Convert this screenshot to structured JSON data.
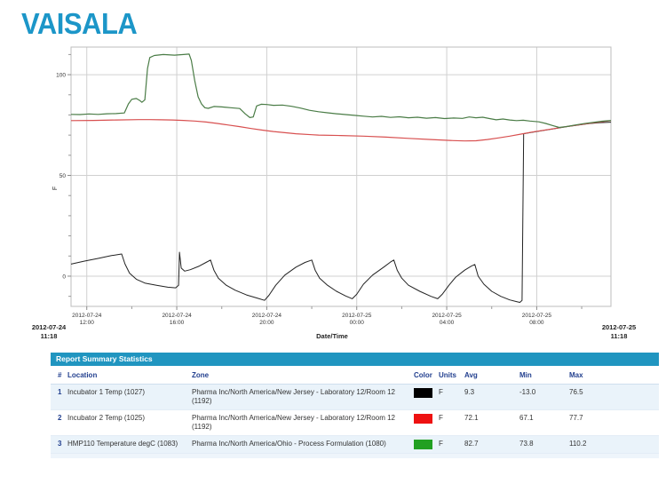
{
  "logo": {
    "text": "VAISALA",
    "color": "#1c96c8"
  },
  "chart_data": {
    "type": "line",
    "xlabel": "Date/Time",
    "ylabel": "F",
    "grid": true,
    "legend_position": "none",
    "x_range_hours": [
      0,
      24
    ],
    "y_range": [
      -15,
      113.7
    ],
    "x_start_label": {
      "date": "2012-07-24",
      "time": "11:18"
    },
    "x_end_label": {
      "date": "2012-07-25",
      "time": "11:18"
    },
    "x_ticks": [
      {
        "h": 0.7,
        "date": "2012-07-24",
        "time": "12:00"
      },
      {
        "h": 4.7,
        "date": "2012-07-24",
        "time": "16:00"
      },
      {
        "h": 8.7,
        "date": "2012-07-24",
        "time": "20:00"
      },
      {
        "h": 12.7,
        "date": "2012-07-25",
        "time": "00:00"
      },
      {
        "h": 16.7,
        "date": "2012-07-25",
        "time": "04:00"
      },
      {
        "h": 20.7,
        "date": "2012-07-25",
        "time": "08:00"
      }
    ],
    "x_minor_ticks_h": [
      2.7,
      6.7,
      10.7,
      14.7,
      18.7,
      22.7
    ],
    "y_ticks": [
      {
        "v": 0,
        "label": "0"
      },
      {
        "v": 50,
        "label": "50"
      },
      {
        "v": 100,
        "label": "100"
      }
    ],
    "y_minor_ticks": [
      -10,
      10,
      20,
      30,
      40,
      60,
      70,
      80,
      90,
      110
    ],
    "series": [
      {
        "name": "Incubator 1 Temp (1027)",
        "color": "#222222",
        "points": [
          [
            0,
            6
          ],
          [
            0.6,
            7.5
          ],
          [
            1.2,
            8.8
          ],
          [
            1.8,
            10.2
          ],
          [
            2.25,
            11
          ],
          [
            2.4,
            6
          ],
          [
            2.6,
            1.5
          ],
          [
            2.9,
            -1.5
          ],
          [
            3.3,
            -3.5
          ],
          [
            3.8,
            -4.5
          ],
          [
            4.3,
            -5.5
          ],
          [
            4.65,
            -5.8
          ],
          [
            4.78,
            -4.5
          ],
          [
            4.82,
            11.9
          ],
          [
            4.9,
            4
          ],
          [
            5.05,
            2.5
          ],
          [
            5.3,
            3.2
          ],
          [
            5.7,
            5
          ],
          [
            6.0,
            6.8
          ],
          [
            6.2,
            8
          ],
          [
            6.35,
            3
          ],
          [
            6.55,
            -1
          ],
          [
            6.9,
            -4.5
          ],
          [
            7.3,
            -7
          ],
          [
            7.8,
            -9.3
          ],
          [
            8.3,
            -11
          ],
          [
            8.6,
            -12
          ],
          [
            8.8,
            -9.5
          ],
          [
            9.1,
            -4.5
          ],
          [
            9.5,
            0.5
          ],
          [
            10.0,
            4.5
          ],
          [
            10.4,
            6.8
          ],
          [
            10.7,
            8
          ],
          [
            10.85,
            3
          ],
          [
            11.05,
            -1
          ],
          [
            11.4,
            -4.5
          ],
          [
            11.8,
            -7.5
          ],
          [
            12.2,
            -9.8
          ],
          [
            12.5,
            -11.2
          ],
          [
            12.7,
            -9
          ],
          [
            13.0,
            -4
          ],
          [
            13.4,
            0.5
          ],
          [
            13.9,
            4.5
          ],
          [
            14.2,
            7
          ],
          [
            14.35,
            8
          ],
          [
            14.5,
            3
          ],
          [
            14.7,
            -1
          ],
          [
            15.0,
            -4.5
          ],
          [
            15.5,
            -7.5
          ],
          [
            16.0,
            -10
          ],
          [
            16.3,
            -11.2
          ],
          [
            16.5,
            -9
          ],
          [
            16.8,
            -4.5
          ],
          [
            17.1,
            -0.5
          ],
          [
            17.5,
            3
          ],
          [
            17.8,
            5
          ],
          [
            17.95,
            5.8
          ],
          [
            18.1,
            0
          ],
          [
            18.35,
            -4
          ],
          [
            18.7,
            -7.5
          ],
          [
            19.1,
            -10
          ],
          [
            19.5,
            -11.8
          ],
          [
            19.8,
            -12.6
          ],
          [
            19.95,
            -13
          ],
          [
            20.05,
            -12
          ],
          [
            20.12,
            70.7
          ],
          [
            20.4,
            71.2
          ],
          [
            21,
            72.3
          ],
          [
            21.5,
            73.2
          ],
          [
            22,
            74.1
          ],
          [
            22.5,
            74.9
          ],
          [
            23,
            75.7
          ],
          [
            23.5,
            76.2
          ],
          [
            24,
            76.4
          ]
        ]
      },
      {
        "name": "Incubator 2 Temp (1025)",
        "color": "#d85050",
        "points": [
          [
            0,
            77.2
          ],
          [
            1,
            77.3
          ],
          [
            2,
            77.5
          ],
          [
            3,
            77.7
          ],
          [
            3.5,
            77.7
          ],
          [
            4,
            77.6
          ],
          [
            4.5,
            77.5
          ],
          [
            5,
            77.3
          ],
          [
            5.5,
            77
          ],
          [
            6,
            76.5
          ],
          [
            6.5,
            75.8
          ],
          [
            7,
            75
          ],
          [
            7.5,
            74.2
          ],
          [
            8,
            73.3
          ],
          [
            8.5,
            72.5
          ],
          [
            9,
            71.8
          ],
          [
            9.5,
            71.2
          ],
          [
            10,
            70.7
          ],
          [
            10.7,
            70.2
          ],
          [
            11,
            70
          ],
          [
            12,
            69.8
          ],
          [
            13,
            69.5
          ],
          [
            14,
            69
          ],
          [
            15,
            68.4
          ],
          [
            16,
            67.8
          ],
          [
            17,
            67.3
          ],
          [
            17.5,
            67.1
          ],
          [
            18,
            67.2
          ],
          [
            18.5,
            67.8
          ],
          [
            19,
            68.6
          ],
          [
            19.5,
            69.5
          ],
          [
            20,
            70.5
          ],
          [
            20.5,
            71.5
          ],
          [
            21,
            72.4
          ],
          [
            21.5,
            73.3
          ],
          [
            22,
            74.2
          ],
          [
            22.5,
            75
          ],
          [
            23,
            75.8
          ],
          [
            23.5,
            76.5
          ],
          [
            24,
            77.2
          ]
        ]
      },
      {
        "name": "HMP110 Temperature degC (1083)",
        "color": "#4a7c46",
        "points": [
          [
            0,
            80.3
          ],
          [
            0.4,
            80.2
          ],
          [
            0.8,
            80.5
          ],
          [
            1.2,
            80.3
          ],
          [
            1.6,
            80.6
          ],
          [
            2.0,
            80.7
          ],
          [
            2.37,
            81
          ],
          [
            2.55,
            85.5
          ],
          [
            2.7,
            87.8
          ],
          [
            2.9,
            88.2
          ],
          [
            3.05,
            87.2
          ],
          [
            3.15,
            86.3
          ],
          [
            3.28,
            87.5
          ],
          [
            3.4,
            103
          ],
          [
            3.5,
            108.5
          ],
          [
            3.7,
            109.5
          ],
          [
            4.1,
            110
          ],
          [
            4.6,
            109.7
          ],
          [
            5.0,
            110
          ],
          [
            5.25,
            110.2
          ],
          [
            5.35,
            107
          ],
          [
            5.5,
            97
          ],
          [
            5.65,
            89
          ],
          [
            5.8,
            85.5
          ],
          [
            5.95,
            83.6
          ],
          [
            6.1,
            83.3
          ],
          [
            6.35,
            84.2
          ],
          [
            6.7,
            84
          ],
          [
            7.1,
            83.6
          ],
          [
            7.5,
            83.2
          ],
          [
            7.75,
            80.5
          ],
          [
            7.95,
            78.7
          ],
          [
            8.1,
            79
          ],
          [
            8.25,
            84.5
          ],
          [
            8.45,
            85.3
          ],
          [
            8.7,
            85.2
          ],
          [
            9.0,
            84.8
          ],
          [
            9.4,
            84.9
          ],
          [
            9.8,
            84.3
          ],
          [
            10.2,
            83.4
          ],
          [
            10.6,
            82.3
          ],
          [
            11.0,
            81.6
          ],
          [
            11.4,
            81.1
          ],
          [
            11.8,
            80.6
          ],
          [
            12.2,
            80.2
          ],
          [
            12.6,
            79.8
          ],
          [
            13.0,
            79.4
          ],
          [
            13.4,
            79.0
          ],
          [
            13.8,
            79.3
          ],
          [
            14.2,
            78.8
          ],
          [
            14.6,
            79.1
          ],
          [
            15.0,
            78.6
          ],
          [
            15.4,
            78.9
          ],
          [
            15.8,
            78.4
          ],
          [
            16.2,
            78.7
          ],
          [
            16.6,
            78.2
          ],
          [
            17.0,
            78.5
          ],
          [
            17.4,
            78.3
          ],
          [
            17.7,
            79.0
          ],
          [
            18.0,
            78.6
          ],
          [
            18.3,
            78.9
          ],
          [
            18.6,
            78.2
          ],
          [
            18.9,
            77.6
          ],
          [
            19.2,
            78.0
          ],
          [
            19.5,
            77.5
          ],
          [
            19.8,
            77.2
          ],
          [
            20.1,
            77.4
          ],
          [
            20.4,
            77.0
          ],
          [
            20.8,
            76.6
          ],
          [
            21.1,
            75.8
          ],
          [
            21.4,
            74.8
          ],
          [
            21.7,
            73.8
          ],
          [
            22.0,
            74.2
          ],
          [
            22.4,
            75.0
          ],
          [
            22.8,
            75.7
          ],
          [
            23.2,
            76.3
          ],
          [
            23.6,
            76.9
          ],
          [
            24,
            77.3
          ]
        ]
      }
    ]
  },
  "table": {
    "title": "Report Summary Statistics",
    "columns": [
      "#",
      "Location",
      "Zone",
      "Color",
      "Units",
      "Avg",
      "Min",
      "Max"
    ],
    "rows": [
      {
        "num": "1",
        "location": "Incubator 1 Temp (1027)",
        "zone": "Pharma Inc/North America/New Jersey - Laboratory 12/Room 12 (1192)",
        "color": "#000000",
        "units": "F",
        "avg": "9.3",
        "min": "-13.0",
        "max": "76.5"
      },
      {
        "num": "2",
        "location": "Incubator 2 Temp (1025)",
        "zone": "Pharma Inc/North America/New Jersey - Laboratory 12/Room 12 (1192)",
        "color": "#ee1111",
        "units": "F",
        "avg": "72.1",
        "min": "67.1",
        "max": "77.7"
      },
      {
        "num": "3",
        "location": "HMP110 Temperature degC (1083)",
        "zone": "Pharma Inc/North America/Ohio - Process Formulation (1080)",
        "color": "#22a022",
        "units": "F",
        "avg": "82.7",
        "min": "73.8",
        "max": "110.2"
      }
    ]
  },
  "colors": {
    "logo_blue": "#1c96c8",
    "table_title_bar": "#2095c0",
    "table_header_text": "#23408f",
    "row_alt_bg": "#eaf3fa",
    "gridline": "#d0d0d0",
    "plot_border": "#bdbdbd",
    "tick_text": "#333333"
  }
}
